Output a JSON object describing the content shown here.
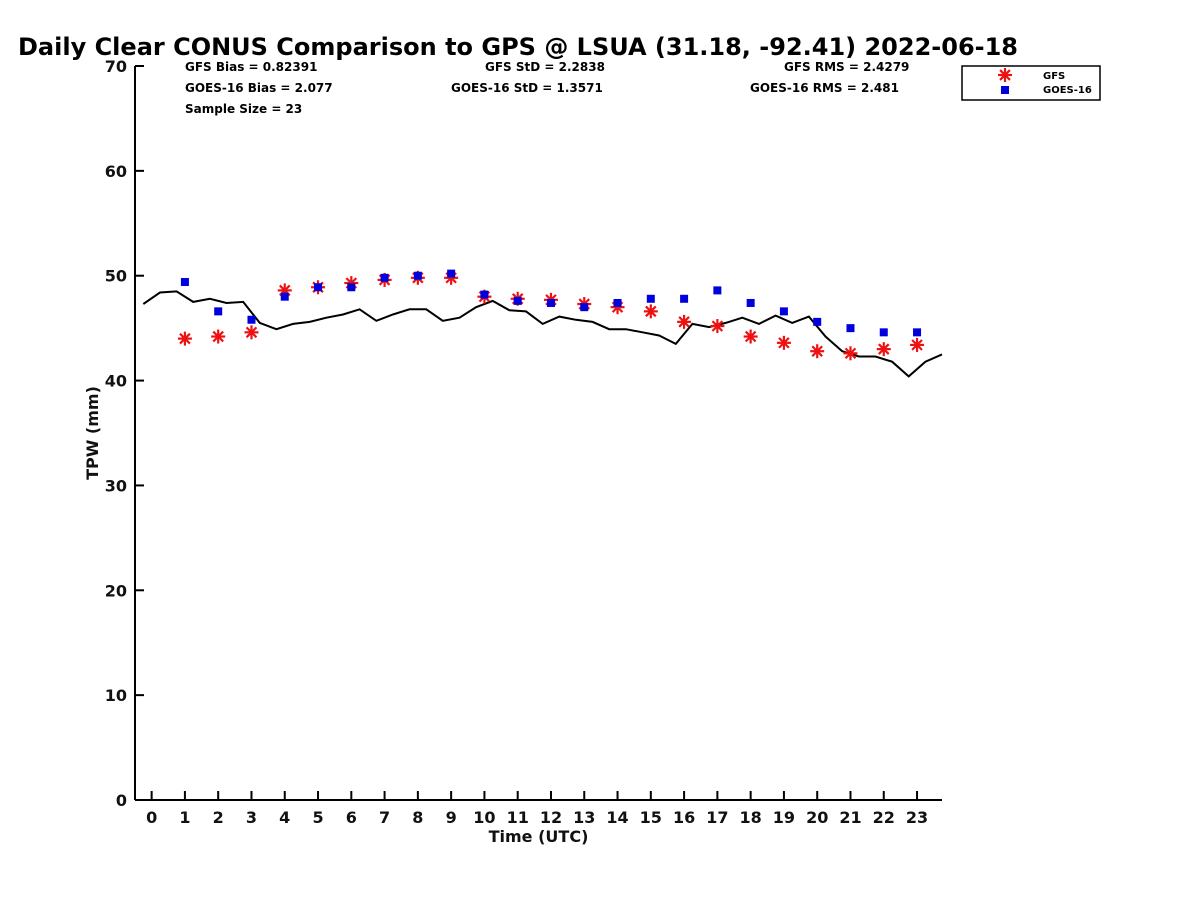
{
  "chart_data": {
    "type": "scatter",
    "title": "Daily Clear CONUS Comparison to GPS @ LSUA (31.18, -92.41) 2022-06-18",
    "xlabel": "Time (UTC)",
    "ylabel": "TPW (mm)",
    "xlim": [
      -0.5,
      23.75
    ],
    "ylim": [
      0,
      70
    ],
    "xticks": [
      0,
      1,
      2,
      3,
      4,
      5,
      6,
      7,
      8,
      9,
      10,
      11,
      12,
      13,
      14,
      15,
      16,
      17,
      18,
      19,
      20,
      21,
      22,
      23
    ],
    "yticks": [
      0,
      10,
      20,
      30,
      40,
      50,
      60,
      70
    ],
    "grid": false,
    "legend_position": "top-right",
    "stats": {
      "gfs_bias": "GFS Bias = 0.82391",
      "goes_bias": "GOES-16 Bias = 2.077",
      "sample_size": "Sample Size = 23",
      "gfs_std": "GFS StD = 2.2838",
      "goes_std": "GOES-16 StD = 1.3571",
      "gfs_rms": "GFS RMS = 2.4279",
      "goes_rms": "GOES-16 RMS = 2.481"
    },
    "series": [
      {
        "name": "GFS",
        "marker": "asterisk",
        "color": "#ee1111",
        "x": [
          1,
          2,
          3,
          4,
          5,
          6,
          7,
          8,
          9,
          10,
          11,
          12,
          13,
          14,
          15,
          16,
          17,
          18,
          19,
          20,
          21,
          22,
          23
        ],
        "y": [
          44.0,
          44.2,
          44.6,
          48.6,
          48.9,
          49.3,
          49.6,
          49.8,
          49.8,
          48.0,
          47.8,
          47.7,
          47.3,
          47.0,
          46.6,
          45.6,
          45.2,
          44.2,
          43.6,
          42.8,
          42.6,
          43.0,
          43.4
        ]
      },
      {
        "name": "GOES-16",
        "marker": "square",
        "color": "#0000dd",
        "x": [
          1,
          2,
          3,
          4,
          5,
          6,
          7,
          8,
          9,
          10,
          11,
          12,
          13,
          14,
          15,
          16,
          17,
          18,
          19,
          20,
          21,
          22,
          23
        ],
        "y": [
          49.4,
          46.6,
          45.8,
          48.0,
          48.9,
          48.9,
          49.8,
          50.0,
          50.2,
          48.2,
          47.6,
          47.4,
          47.0,
          47.4,
          47.8,
          47.8,
          48.6,
          47.4,
          46.6,
          45.6,
          45.0,
          44.6,
          44.6
        ]
      },
      {
        "line_color": "#000000",
        "x": [
          -0.25,
          0.25,
          0.75,
          1.25,
          1.75,
          2.25,
          2.75,
          3.25,
          3.75,
          4.25,
          4.75,
          5.25,
          5.75,
          6.25,
          6.75,
          7.25,
          7.75,
          8.25,
          8.75,
          9.25,
          9.75,
          10.25,
          10.75,
          11.25,
          11.75,
          12.25,
          12.75,
          13.25,
          13.75,
          14.25,
          14.75,
          15.25,
          15.75,
          16.25,
          16.75,
          17.25,
          17.75,
          18.25,
          18.75,
          19.25,
          19.75,
          20.25,
          20.75,
          21.25,
          21.75,
          22.25,
          22.75,
          23.25,
          23.75
        ],
        "y": [
          47.3,
          48.4,
          48.5,
          47.5,
          47.8,
          47.4,
          47.5,
          45.5,
          44.9,
          45.4,
          45.6,
          46.0,
          46.3,
          46.8,
          45.7,
          46.3,
          46.8,
          46.8,
          45.7,
          46.0,
          47.0,
          47.6,
          46.7,
          46.6,
          45.4,
          46.1,
          45.8,
          45.6,
          44.9,
          44.9,
          44.6,
          44.3,
          43.5,
          45.4,
          45.1,
          45.5,
          46.0,
          45.4,
          46.2,
          45.5,
          46.1,
          44.2,
          42.8,
          42.3,
          42.3,
          41.8,
          40.4,
          41.8,
          42.5
        ]
      }
    ]
  }
}
